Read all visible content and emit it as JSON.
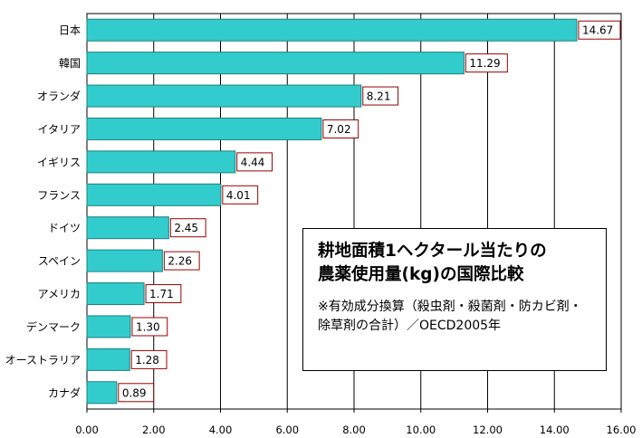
{
  "chart_data": {
    "type": "bar",
    "orientation": "horizontal",
    "categories": [
      "日本",
      "韓国",
      "オランダ",
      "イタリア",
      "イギリス",
      "フランス",
      "ドイツ",
      "スペイン",
      "アメリカ",
      "デンマーク",
      "オーストラリア",
      "カナダ"
    ],
    "values": [
      14.67,
      11.29,
      8.21,
      7.02,
      4.44,
      4.01,
      2.45,
      2.26,
      1.71,
      1.3,
      1.28,
      0.89
    ],
    "value_labels": [
      "14.67",
      "11.29",
      "8.21",
      "7.02",
      "4.44",
      "4.01",
      "2.45",
      "2.26",
      "1.71",
      "1.30",
      "1.28",
      "0.89"
    ],
    "xlim": [
      0,
      16
    ],
    "x_ticks": [
      "0.00",
      "2.00",
      "4.00",
      "6.00",
      "8.00",
      "10.00",
      "12.00",
      "14.00",
      "16.00"
    ],
    "grid": true,
    "colors": {
      "bar_fill": "#33cccc",
      "bar_stroke": "#1a8080",
      "label_border": "#990000",
      "grid": "#000000"
    }
  },
  "annotation": {
    "title_line1": "耕地面積1ヘクタール当たりの",
    "title_line2": "農薬使用量(kg)の国際比較",
    "note": "※有効成分換算（殺虫剤・殺菌剤・防カビ剤・除草剤の合計）／OECD2005年"
  }
}
